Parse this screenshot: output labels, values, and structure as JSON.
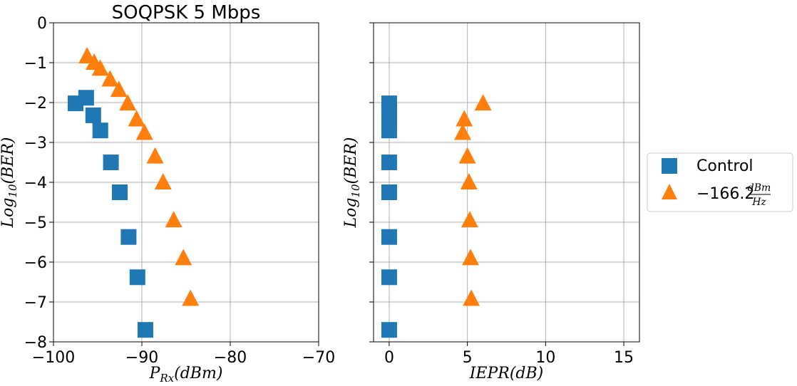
{
  "chart_data": [
    {
      "type": "scatter",
      "title": "SOQPSK 5 Mbps",
      "xlabel": {
        "base": "P",
        "sub": "Rx",
        "rest": "(dBm)"
      },
      "ylabel": {
        "base": "Log",
        "sub": "10",
        "rest": "(BER)"
      },
      "xlim": [
        -100,
        -70
      ],
      "ylim": [
        -8,
        0
      ],
      "xticks": [
        -100,
        -90,
        -80,
        -70
      ],
      "yticks": [
        0,
        -1,
        -2,
        -3,
        -4,
        -5,
        -6,
        -7,
        -8
      ],
      "xtick_labels": [
        "−100",
        "−90",
        "−80",
        "−70"
      ],
      "ytick_labels": [
        "0",
        "−1",
        "−2",
        "−3",
        "−4",
        "−5",
        "−6",
        "−7",
        "−8"
      ],
      "grid": true,
      "series": [
        {
          "name": "Control",
          "marker": "square",
          "color": "#1f77b4",
          "x": [
            -97.5,
            -96.3,
            -95.5,
            -94.7,
            -93.5,
            -92.5,
            -91.5,
            -90.5,
            -89.6
          ],
          "y": [
            -2.02,
            -1.88,
            -2.32,
            -2.7,
            -3.5,
            -4.25,
            -5.37,
            -6.38,
            -7.7
          ]
        },
        {
          "name": "−166.2 dBm/Hz",
          "marker": "triangle",
          "color": "#ff7f0e",
          "x": [
            -96.2,
            -95.4,
            -94.7,
            -93.6,
            -92.6,
            -91.6,
            -90.6,
            -89.7,
            -88.5,
            -87.6,
            -86.4,
            -85.3,
            -84.5
          ],
          "y": [
            -0.84,
            -1.0,
            -1.15,
            -1.42,
            -1.68,
            -2.02,
            -2.42,
            -2.76,
            -3.35,
            -4.0,
            -4.95,
            -5.9,
            -6.92
          ]
        }
      ]
    },
    {
      "type": "scatter",
      "title": "",
      "xlabel": {
        "base": "IEPR",
        "sub": "",
        "rest": "(dB)"
      },
      "ylabel": {
        "base": "Log",
        "sub": "10",
        "rest": "(BER)"
      },
      "xlim": [
        -1,
        16
      ],
      "ylim": [
        -8,
        0
      ],
      "xticks": [
        0,
        5,
        10,
        15
      ],
      "yticks": [
        0,
        -1,
        -2,
        -3,
        -4,
        -5,
        -6,
        -7,
        -8
      ],
      "xtick_labels": [
        "0",
        "5",
        "10",
        "15"
      ],
      "grid": true,
      "series": [
        {
          "name": "Control",
          "marker": "square",
          "color": "#1f77b4",
          "x": [
            0,
            0,
            0,
            0,
            0,
            0,
            0,
            0,
            0
          ],
          "y": [
            -2.02,
            -2.2,
            -2.4,
            -2.7,
            -3.5,
            -4.25,
            -5.37,
            -6.38,
            -7.7
          ]
        },
        {
          "name": "−166.2 dBm/Hz",
          "marker": "triangle",
          "color": "#ff7f0e",
          "x": [
            6.0,
            4.8,
            4.7,
            5.0,
            5.1,
            5.15,
            5.2,
            5.25
          ],
          "y": [
            -2.02,
            -2.42,
            -2.76,
            -3.35,
            -4.0,
            -4.95,
            -5.9,
            -6.92
          ]
        }
      ]
    }
  ],
  "legend": {
    "placement": "right",
    "entries": [
      {
        "label": "Control",
        "marker": "square",
        "color": "#1f77b4"
      },
      {
        "label_main": "−166.2",
        "label_num": "dBm",
        "label_den": "Hz",
        "marker": "triangle",
        "color": "#ff7f0e"
      }
    ]
  }
}
